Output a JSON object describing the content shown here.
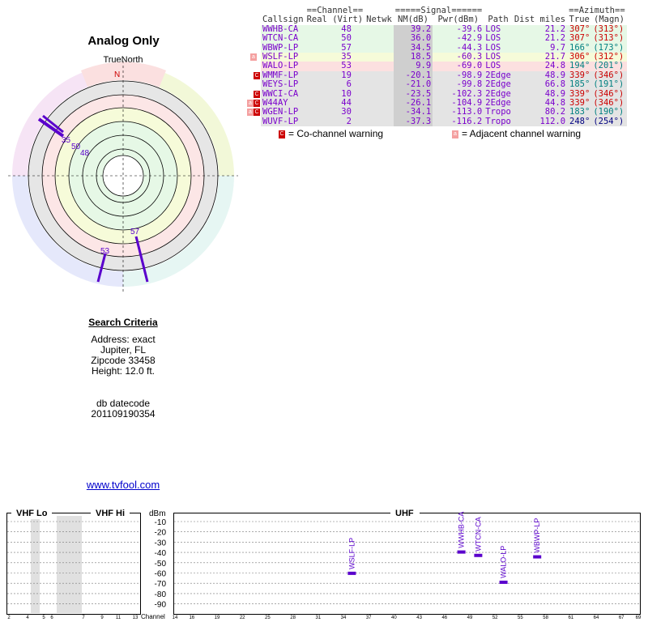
{
  "title": "Analog Only",
  "compass": {
    "true_north_label": "TrueNorth",
    "north_letter": "N"
  },
  "polar_labels": [
    "35",
    "50",
    "48",
    "57",
    "53"
  ],
  "table": {
    "group_headers": {
      "channel": "Channel",
      "signal": "Signal",
      "azimuth": "Azimuth"
    },
    "headers": [
      "Callsign",
      "Real",
      "(Virt)",
      "Netwk",
      "NM(dB)",
      "Pwr(dBm)",
      "Path",
      "Dist miles",
      "True",
      "(Magn)"
    ],
    "rows": [
      {
        "callsign": "WWHB-CA",
        "real": "48",
        "nm": "39.2",
        "pwr": "-39.6",
        "path": "LOS",
        "dist": "21.2",
        "true": "307°",
        "magn": "(313°)",
        "color": "#7a00cc",
        "az_color": "#cc0000",
        "bg": "#e6f8e6",
        "flag": ""
      },
      {
        "callsign": "WTCN-CA",
        "real": "50",
        "nm": "36.0",
        "pwr": "-42.9",
        "path": "LOS",
        "dist": "21.2",
        "true": "307°",
        "magn": "(313°)",
        "color": "#7a00cc",
        "az_color": "#cc0000",
        "bg": "#e6f8e6",
        "flag": ""
      },
      {
        "callsign": "WBWP-LP",
        "real": "57",
        "nm": "34.5",
        "pwr": "-44.3",
        "path": "LOS",
        "dist": "9.7",
        "true": "166°",
        "magn": "(173°)",
        "color": "#7a00cc",
        "az_color": "#008080",
        "bg": "#e6f8e6",
        "flag": ""
      },
      {
        "callsign": "WSLF-LP",
        "real": "35",
        "nm": "18.5",
        "pwr": "-60.3",
        "path": "LOS",
        "dist": "21.7",
        "true": "306°",
        "magn": "(312°)",
        "color": "#7a00cc",
        "az_color": "#cc0000",
        "bg": "#f6fbd9",
        "flag": "a"
      },
      {
        "callsign": "WALO-LP",
        "real": "53",
        "nm": "9.9",
        "pwr": "-69.0",
        "path": "LOS",
        "dist": "24.8",
        "true": "194°",
        "magn": "(201°)",
        "color": "#7a00cc",
        "az_color": "#008080",
        "bg": "#fce0e0",
        "flag": ""
      },
      {
        "callsign": "WMMF-LP",
        "real": "19",
        "nm": "-20.1",
        "pwr": "-98.9",
        "path": "2Edge",
        "dist": "48.9",
        "true": "339°",
        "magn": "(346°)",
        "color": "#7a00cc",
        "az_color": "#cc0000",
        "bg": "#e4e4e4",
        "flag": "c"
      },
      {
        "callsign": "WEYS-LP",
        "real": "6",
        "nm": "-21.0",
        "pwr": "-99.8",
        "path": "2Edge",
        "dist": "66.8",
        "true": "185°",
        "magn": "(191°)",
        "color": "#7a00cc",
        "az_color": "#008080",
        "bg": "#e4e4e4",
        "flag": ""
      },
      {
        "callsign": "WWCI-CA",
        "real": "10",
        "nm": "-23.5",
        "pwr": "-102.3",
        "path": "2Edge",
        "dist": "48.9",
        "true": "339°",
        "magn": "(346°)",
        "color": "#7a00cc",
        "az_color": "#cc0000",
        "bg": "#e4e4e4",
        "flag": "c"
      },
      {
        "callsign": "W44AY",
        "real": "44",
        "nm": "-26.1",
        "pwr": "-104.9",
        "path": "2Edge",
        "dist": "44.8",
        "true": "339°",
        "magn": "(346°)",
        "color": "#7a00cc",
        "az_color": "#cc0000",
        "bg": "#e4e4e4",
        "flag": "ac"
      },
      {
        "callsign": "WGEN-LP",
        "real": "30",
        "nm": "-34.1",
        "pwr": "-113.0",
        "path": "Tropo",
        "dist": "80.2",
        "true": "183°",
        "magn": "(190°)",
        "color": "#7a00cc",
        "az_color": "#008080",
        "bg": "#e4e4e4",
        "flag": "ac"
      },
      {
        "callsign": "WUVF-LP",
        "real": "2",
        "nm": "-37.3",
        "pwr": "-116.2",
        "path": "Tropo",
        "dist": "112.0",
        "true": "248°",
        "magn": "(254°)",
        "color": "#7a00cc",
        "az_color": "#000080",
        "bg": "#e4e4e4",
        "flag": ""
      }
    ]
  },
  "legend": {
    "co_channel": "= Co-channel warning",
    "adjacent": "= Adjacent channel warning",
    "co_letter": "C",
    "adj_letter": "a"
  },
  "search": {
    "heading": "Search Criteria",
    "address": "Address: exact",
    "city": "Jupiter, FL",
    "zipcode": "Zipcode 33458",
    "height": "Height: 12.0 ft.",
    "db_label": "db datecode",
    "db_value": "201109190354"
  },
  "link": "www.tvfool.com",
  "spectrum": {
    "vhf_lo": "VHF Lo",
    "vhf_hi": "VHF Hi",
    "uhf": "UHF",
    "dbm": "dBm",
    "channel_label": "Channel",
    "db_ticks": [
      "-10",
      "-20",
      "-30",
      "-40",
      "-50",
      "-60",
      "-70",
      "-80",
      "-90"
    ],
    "vhf_ticks": [
      "2",
      "4",
      "5",
      "6",
      "7",
      "9",
      "11",
      "13"
    ],
    "uhf_ticks": [
      "14",
      "16",
      "19",
      "22",
      "25",
      "28",
      "31",
      "34",
      "37",
      "40",
      "43",
      "46",
      "49",
      "52",
      "55",
      "58",
      "61",
      "64",
      "67",
      "69"
    ],
    "stations": [
      {
        "label": "WSLF-LP",
        "channel": 35,
        "dbm": -60.3
      },
      {
        "label": "WWHB-CA",
        "channel": 48,
        "dbm": -39.6
      },
      {
        "label": "WTCN-CA",
        "channel": 50,
        "dbm": -42.9
      },
      {
        "label": "WALO-LP",
        "channel": 53,
        "dbm": -69.0
      },
      {
        "label": "WBWP-LP",
        "channel": 57,
        "dbm": -44.3
      }
    ]
  }
}
